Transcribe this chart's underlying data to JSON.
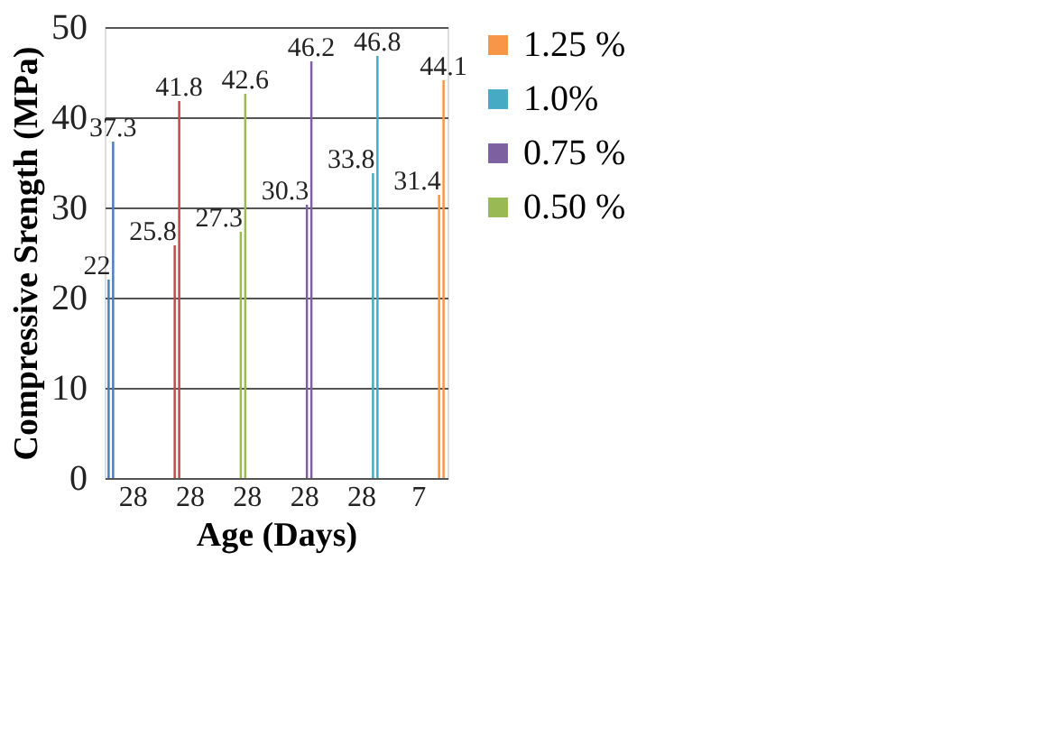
{
  "chart_data": {
    "type": "bar",
    "xlabel": "Age (Days)",
    "ylabel": "Compressive Srength (MPa)",
    "categories": [
      "28",
      "28",
      "28",
      "28",
      "28",
      "7"
    ],
    "series": [
      {
        "color": "#4a7ebb",
        "values": [
          22,
          null,
          null,
          null,
          null,
          null
        ]
      },
      {
        "color": "#4a7ebb",
        "values": [
          37.3,
          null,
          null,
          null,
          null,
          null
        ]
      },
      {
        "color": "#be4b48",
        "values": [
          null,
          25.8,
          null,
          null,
          null,
          null
        ]
      },
      {
        "color": "#be4b48",
        "values": [
          null,
          41.8,
          null,
          null,
          null,
          null
        ]
      },
      {
        "name": "0.50 %",
        "color": "#98b954",
        "values": [
          null,
          null,
          27.3,
          null,
          null,
          null
        ]
      },
      {
        "color": "#98b954",
        "values": [
          null,
          null,
          42.6,
          null,
          null,
          null
        ]
      },
      {
        "name": "0.75 %",
        "color": "#7d60a0",
        "values": [
          null,
          null,
          null,
          30.3,
          null,
          null
        ]
      },
      {
        "color": "#7d60a0",
        "values": [
          null,
          null,
          null,
          46.2,
          null,
          null
        ]
      },
      {
        "name": "1.0%",
        "color": "#46aac5",
        "values": [
          null,
          null,
          null,
          null,
          33.8,
          null
        ]
      },
      {
        "color": "#46aac5",
        "values": [
          null,
          null,
          null,
          null,
          46.8,
          null
        ]
      },
      {
        "name": "1.25 %",
        "color": "#f79646",
        "values": [
          null,
          null,
          null,
          null,
          null,
          31.4
        ]
      },
      {
        "color": "#f79646",
        "values": [
          null,
          null,
          null,
          null,
          null,
          44.1
        ]
      }
    ],
    "ylim": [
      0,
      50
    ],
    "yticks": [
      0,
      10,
      20,
      30,
      40,
      50
    ],
    "grid": "y",
    "legend": "right",
    "data_labels": true
  }
}
